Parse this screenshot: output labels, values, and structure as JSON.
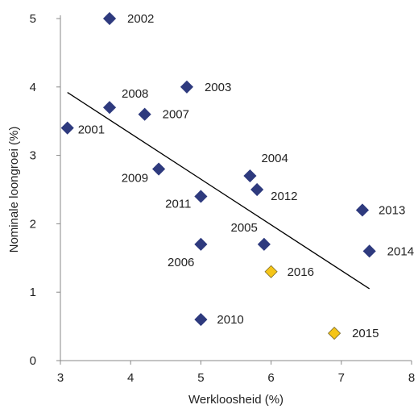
{
  "chart_data": {
    "type": "scatter",
    "xlabel": "Werkloosheid (%)",
    "ylabel": "Nominale loongroei (%)",
    "xlim": [
      3,
      8
    ],
    "ylim": [
      0,
      5
    ],
    "x_ticks": [
      "3",
      "4",
      "5",
      "6",
      "7",
      "8"
    ],
    "y_ticks": [
      "0",
      "1",
      "2",
      "3",
      "4",
      "5"
    ],
    "grid": false,
    "series": [
      {
        "color": "#2E3A7E",
        "points": [
          {
            "label": "2001",
            "x": 3.1,
            "y": 3.4
          },
          {
            "label": "2002",
            "x": 3.7,
            "y": 5.0
          },
          {
            "label": "2003",
            "x": 4.8,
            "y": 4.0
          },
          {
            "label": "2004",
            "x": 5.7,
            "y": 2.7
          },
          {
            "label": "2005",
            "x": 5.9,
            "y": 1.7
          },
          {
            "label": "2006",
            "x": 5.0,
            "y": 1.7
          },
          {
            "label": "2007",
            "x": 4.2,
            "y": 3.6
          },
          {
            "label": "2008",
            "x": 3.7,
            "y": 3.7
          },
          {
            "label": "2009",
            "x": 4.4,
            "y": 2.8
          },
          {
            "label": "2010",
            "x": 5.0,
            "y": 0.6
          },
          {
            "label": "2011",
            "x": 5.0,
            "y": 2.4
          },
          {
            "label": "2012",
            "x": 5.8,
            "y": 2.5
          },
          {
            "label": "2013",
            "x": 7.3,
            "y": 2.2
          },
          {
            "label": "2014",
            "x": 7.4,
            "y": 1.6
          }
        ]
      },
      {
        "color": "#F5C518",
        "points": [
          {
            "label": "2015",
            "x": 6.9,
            "y": 0.4
          },
          {
            "label": "2016",
            "x": 6.0,
            "y": 1.3
          }
        ]
      }
    ],
    "trendline": {
      "x": [
        3.1,
        7.4
      ],
      "y": [
        3.92,
        1.05
      ],
      "color": "#000000"
    }
  }
}
